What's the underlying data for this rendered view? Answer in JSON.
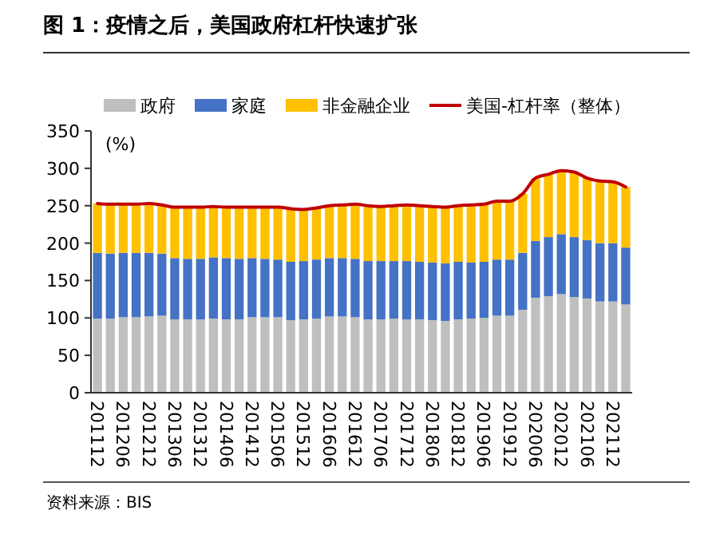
{
  "chart_data": {
    "type": "bar",
    "title": "图 1：疫情之后，美国政府杠杆快速扩张",
    "categories": [
      "201112",
      null,
      "201206",
      null,
      "201212",
      null,
      "201306",
      null,
      "201312",
      null,
      "201406",
      null,
      "201412",
      null,
      "201506",
      null,
      "201512",
      null,
      "201606",
      null,
      "201612",
      null,
      "201706",
      null,
      "201712",
      null,
      "201806",
      null,
      "201812",
      null,
      "201906",
      null,
      "201912",
      null,
      "202006",
      null,
      "202012",
      null,
      "202106",
      null,
      "202112",
      null
    ],
    "stacked": true,
    "series": [
      {
        "name": "政府",
        "color": "#bfbfbf",
        "values": [
          99,
          99,
          101,
          101,
          102,
          103,
          98,
          98,
          98,
          99,
          98,
          98,
          101,
          101,
          101,
          97,
          98,
          99,
          102,
          102,
          101,
          98,
          98,
          99,
          98,
          98,
          97,
          96,
          98,
          99,
          100,
          103,
          103,
          111,
          127,
          129,
          132,
          128,
          126,
          122,
          122,
          118
        ]
      },
      {
        "name": "家庭",
        "color": "#4472c4",
        "values": [
          88,
          87,
          86,
          86,
          85,
          83,
          82,
          81,
          81,
          82,
          82,
          81,
          79,
          78,
          77,
          78,
          78,
          79,
          78,
          78,
          78,
          78,
          78,
          77,
          78,
          77,
          77,
          77,
          77,
          75,
          75,
          75,
          75,
          76,
          76,
          79,
          80,
          80,
          78,
          78,
          78,
          76
        ]
      },
      {
        "name": "非金融企业",
        "color": "#ffc000",
        "values": [
          66,
          66,
          65,
          65,
          66,
          65,
          68,
          69,
          69,
          68,
          68,
          69,
          68,
          69,
          70,
          71,
          69,
          69,
          70,
          71,
          73,
          74,
          73,
          74,
          75,
          75,
          75,
          75,
          75,
          77,
          77,
          78,
          78,
          79,
          84,
          84,
          85,
          87,
          83,
          83,
          82,
          81
        ]
      },
      {
        "name": "美国-杠杆率（整体）",
        "type": "line",
        "color": "#c00000",
        "values": [
          253,
          252,
          252,
          252,
          253,
          251,
          248,
          248,
          248,
          249,
          248,
          248,
          248,
          248,
          248,
          246,
          245,
          247,
          250,
          251,
          252,
          250,
          249,
          250,
          251,
          250,
          249,
          248,
          250,
          251,
          252,
          256,
          256,
          266,
          287,
          292,
          297,
          295,
          287,
          283,
          282,
          275
        ]
      }
    ],
    "ylim": [
      0,
      350
    ],
    "yticks": [
      0,
      50,
      100,
      150,
      200,
      250,
      300,
      350
    ],
    "legend": "top",
    "annotations": [
      "(%)",
      "资料来源：BIS"
    ]
  }
}
